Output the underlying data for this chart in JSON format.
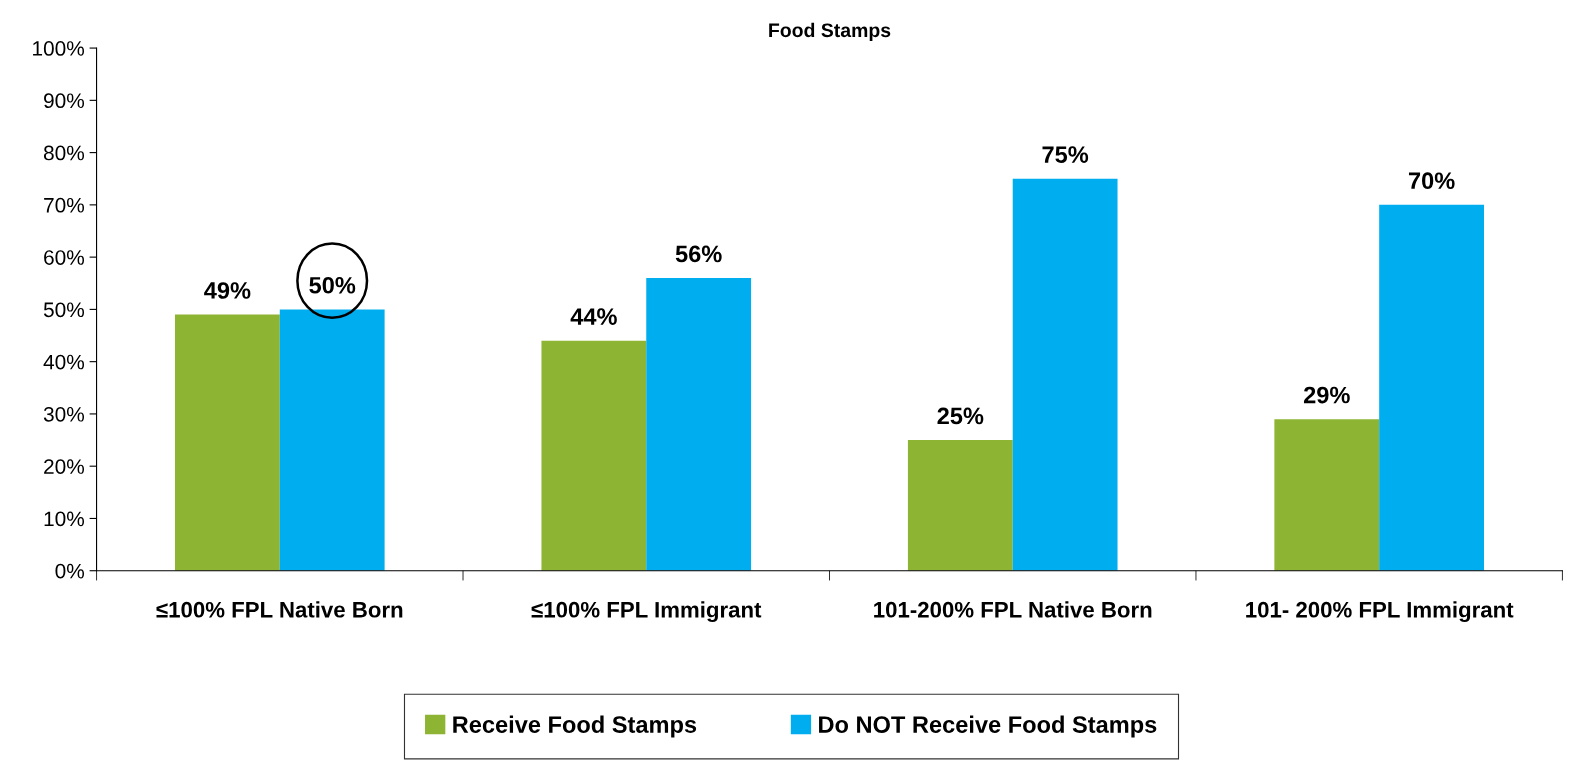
{
  "chart_data": {
    "type": "bar",
    "title": "Food Stamps",
    "categories": [
      "≤100% FPL Native Born",
      "≤100% FPL Immigrant",
      "101-200% FPL Native Born",
      "101- 200% FPL Immigrant"
    ],
    "series": [
      {
        "name": "Receive Food Stamps",
        "color": "#8db433",
        "values": [
          49,
          44,
          25,
          29
        ]
      },
      {
        "name": "Do NOT Receive Food Stamps",
        "color": "#00adef",
        "values": [
          50,
          56,
          75,
          70
        ]
      }
    ],
    "ylim": [
      0,
      100
    ],
    "yticks": [
      {
        "value": 0,
        "label": "0%"
      },
      {
        "value": 10,
        "label": "10%"
      },
      {
        "value": 20,
        "label": "20%"
      },
      {
        "value": 30,
        "label": "30%"
      },
      {
        "value": 40,
        "label": "40%"
      },
      {
        "value": 50,
        "label": "50%"
      },
      {
        "value": 60,
        "label": "60%"
      },
      {
        "value": 70,
        "label": "70%"
      },
      {
        "value": 80,
        "label": "80%"
      },
      {
        "value": 90,
        "label": "90%"
      },
      {
        "value": 100,
        "label": "100%"
      }
    ],
    "value_labels": [
      [
        "49%",
        "44%",
        "25%",
        "29%"
      ],
      [
        "50%",
        "56%",
        "75%",
        "70%"
      ]
    ],
    "grid": false,
    "legend": "bottom"
  }
}
